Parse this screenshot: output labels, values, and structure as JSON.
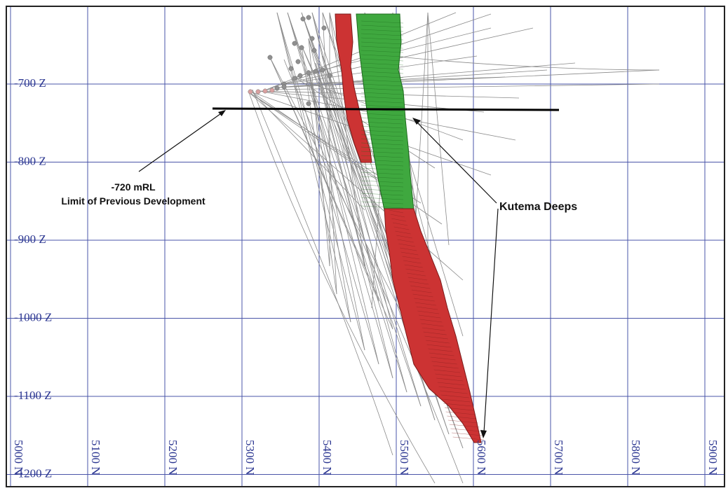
{
  "section": {
    "z_levels": [
      {
        "value": -700,
        "label": "-700 Z"
      },
      {
        "value": -800,
        "label": "-800 Z"
      },
      {
        "value": -900,
        "label": "-900 Z"
      },
      {
        "value": -1000,
        "label": "-1000 Z"
      },
      {
        "value": -1100,
        "label": "-1100 Z"
      },
      {
        "value": -1200,
        "label": "-1200 Z"
      }
    ],
    "northings": [
      {
        "value": 5000,
        "label": "5000 N"
      },
      {
        "value": 5100,
        "label": "5100 N"
      },
      {
        "value": 5200,
        "label": "5200 N"
      },
      {
        "value": 5300,
        "label": "5300 N"
      },
      {
        "value": 5400,
        "label": "5400 N"
      },
      {
        "value": 5500,
        "label": "5500 N"
      },
      {
        "value": 5600,
        "label": "5600 N"
      },
      {
        "value": 5700,
        "label": "5700 N"
      },
      {
        "value": 5800,
        "label": "5800 N"
      },
      {
        "value": 5900,
        "label": "5900 N"
      }
    ],
    "colors": {
      "grid": "#4a55a8",
      "ore_above_limit": "#3fa83f",
      "ore_red": "#cc3333",
      "drillhole": "#8a8a8a"
    }
  },
  "annotations": {
    "limit_line": {
      "level_label": "-720 mRL",
      "description": "Limit of Previous Development"
    },
    "kutema": {
      "label": "Kutema Deeps"
    }
  }
}
